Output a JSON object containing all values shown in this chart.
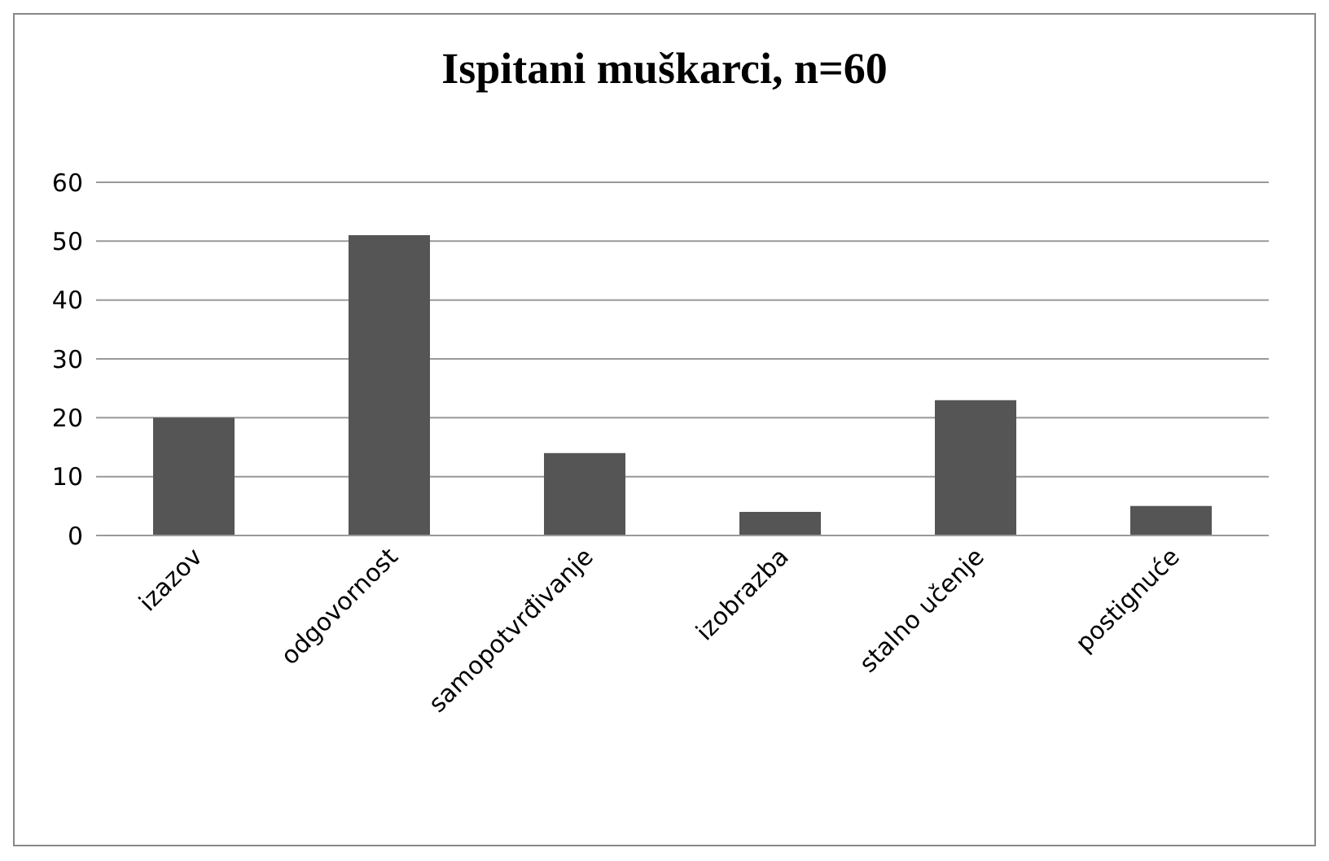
{
  "chart_data": {
    "type": "bar",
    "title": "Ispitani muškarci, n=60",
    "categories": [
      "izazov",
      "odgovornost",
      "samopotvrđivanje",
      "izobrazba",
      "stalno učenje",
      "postignuće"
    ],
    "values": [
      20,
      51,
      14,
      4,
      23,
      5
    ],
    "color": "#555555",
    "ylim": [
      0,
      60
    ],
    "yticks": [
      0,
      10,
      20,
      30,
      40,
      50,
      60
    ],
    "grid": "y"
  }
}
